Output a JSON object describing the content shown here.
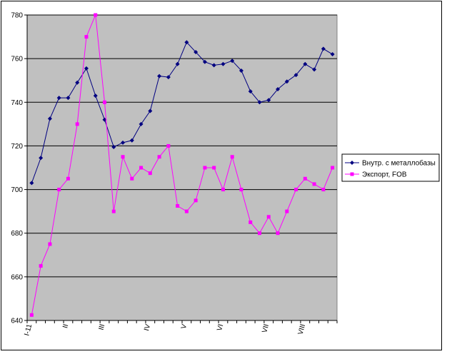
{
  "chart_data": {
    "type": "line",
    "title": "",
    "xlabel": "",
    "ylabel": "",
    "ylim": [
      640,
      780
    ],
    "yticks": [
      640,
      660,
      680,
      700,
      720,
      740,
      760,
      780
    ],
    "x_tick_labels": [
      {
        "index": 0,
        "label": "I-11"
      },
      {
        "index": 4,
        "label": "II"
      },
      {
        "index": 8,
        "label": "III"
      },
      {
        "index": 13,
        "label": "IV"
      },
      {
        "index": 17,
        "label": "V"
      },
      {
        "index": 21,
        "label": "VI"
      },
      {
        "index": 26,
        "label": "VII"
      },
      {
        "index": 30,
        "label": "VIII"
      }
    ],
    "plot_background": "#c0c0c0",
    "grid": true,
    "legend_position": "right",
    "series": [
      {
        "name": "Внутр. с металлобазы",
        "color": "#000080",
        "marker": "diamond",
        "values": [
          703,
          714.5,
          732.5,
          742,
          742,
          749,
          755.5,
          743,
          732,
          719.5,
          721.5,
          722.5,
          730,
          736,
          752,
          751.5,
          757.5,
          767.5,
          763,
          758.5,
          757,
          757.5,
          759,
          754.5,
          745,
          740,
          741,
          746,
          749.5,
          752.5,
          757.5,
          755,
          764.5,
          762
        ]
      },
      {
        "name": "Экспорт, FOB",
        "color": "#ff00ff",
        "marker": "square",
        "values": [
          642.5,
          665,
          675,
          700,
          705,
          730,
          770,
          780,
          740,
          690,
          715,
          705,
          710,
          707.5,
          715,
          720,
          692.5,
          690,
          695,
          710,
          710,
          700,
          715,
          700,
          685,
          680,
          687.5,
          680,
          690,
          700,
          705,
          702.5,
          700,
          710
        ]
      }
    ]
  }
}
